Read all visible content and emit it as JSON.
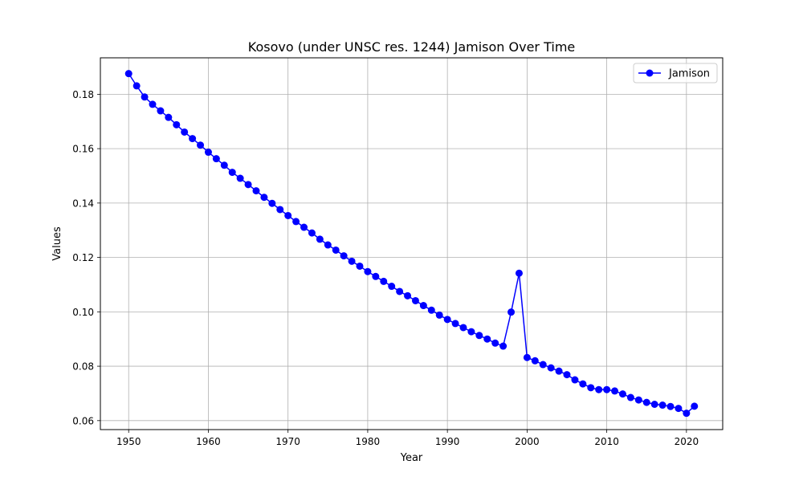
{
  "chart_data": {
    "type": "line",
    "title": "Kosovo (under UNSC res. 1244) Jamison Over Time",
    "xlabel": "Year",
    "ylabel": "Values",
    "xlim": [
      1946.45,
      2024.55
    ],
    "ylim": [
      0.0567,
      0.1934
    ],
    "x_ticks": [
      1950,
      1960,
      1970,
      1980,
      1990,
      2000,
      2010,
      2020
    ],
    "y_ticks": [
      0.06,
      0.08,
      0.1,
      0.12,
      0.14,
      0.16,
      0.18
    ],
    "x_tick_labels": [
      "1950",
      "1960",
      "1970",
      "1980",
      "1990",
      "2000",
      "2010",
      "2020"
    ],
    "y_tick_labels": [
      "0.06",
      "0.08",
      "0.10",
      "0.12",
      "0.14",
      "0.16",
      "0.18"
    ],
    "grid": true,
    "legend_position": "top-right",
    "series": [
      {
        "name": "Jamison",
        "color": "#0000ff",
        "marker": "circle",
        "x": [
          1950,
          1951,
          1952,
          1953,
          1954,
          1955,
          1956,
          1957,
          1958,
          1959,
          1960,
          1961,
          1962,
          1963,
          1964,
          1965,
          1966,
          1967,
          1968,
          1969,
          1970,
          1971,
          1972,
          1973,
          1974,
          1975,
          1976,
          1977,
          1978,
          1979,
          1980,
          1981,
          1982,
          1983,
          1984,
          1985,
          1986,
          1987,
          1988,
          1989,
          1990,
          1991,
          1992,
          1993,
          1994,
          1995,
          1996,
          1997,
          1998,
          1999,
          2000,
          2001,
          2002,
          2003,
          2004,
          2005,
          2006,
          2007,
          2008,
          2009,
          2010,
          2011,
          2012,
          2013,
          2014,
          2015,
          2016,
          2017,
          2018,
          2019,
          2020,
          2021
        ],
        "y": [
          0.1876,
          0.1831,
          0.179,
          0.1763,
          0.1739,
          0.1715,
          0.1688,
          0.1661,
          0.1637,
          0.1613,
          0.1587,
          0.1563,
          0.1539,
          0.1513,
          0.1491,
          0.1468,
          0.1445,
          0.1421,
          0.1399,
          0.1376,
          0.1354,
          0.1332,
          0.1311,
          0.129,
          0.1267,
          0.1246,
          0.1227,
          0.1206,
          0.1186,
          0.1168,
          0.1148,
          0.113,
          0.1112,
          0.1094,
          0.1075,
          0.1059,
          0.1041,
          0.1023,
          0.1006,
          0.0988,
          0.0972,
          0.0957,
          0.0942,
          0.0927,
          0.0913,
          0.09,
          0.0885,
          0.0874,
          0.0999,
          0.1142,
          0.0832,
          0.082,
          0.0806,
          0.0794,
          0.0782,
          0.0769,
          0.075,
          0.0735,
          0.0721,
          0.0714,
          0.0714,
          0.0709,
          0.0698,
          0.0685,
          0.0676,
          0.0667,
          0.066,
          0.0657,
          0.0652,
          0.0645,
          0.0627,
          0.0653
        ]
      }
    ]
  }
}
